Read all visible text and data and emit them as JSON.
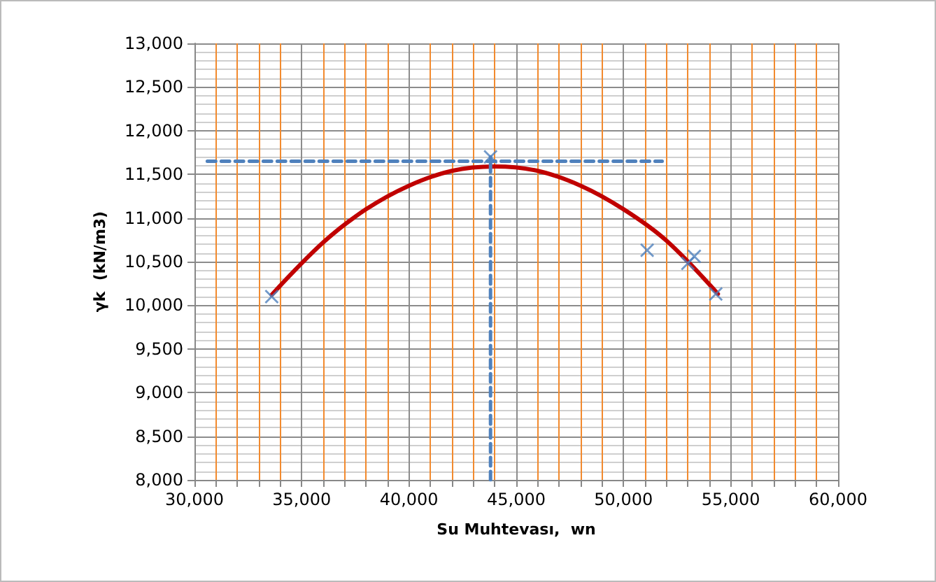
{
  "chart_data": {
    "type": "scatter",
    "xlabel": "Su Muhtevası,  wn",
    "ylabel": "γk  (kN/m3)",
    "xlim": [
      30000,
      60000
    ],
    "xticks": [
      {
        "value": 30000,
        "label": "30,000"
      },
      {
        "value": 31000,
        "label": null
      },
      {
        "value": 32000,
        "label": null
      },
      {
        "value": 33000,
        "label": null
      },
      {
        "value": 34000,
        "label": null
      },
      {
        "value": 35000,
        "label": "35,000"
      },
      {
        "value": 36000,
        "label": null
      },
      {
        "value": 37000,
        "label": null
      },
      {
        "value": 38000,
        "label": null
      },
      {
        "value": 39000,
        "label": null
      },
      {
        "value": 40000,
        "label": "40,000"
      },
      {
        "value": 41000,
        "label": null
      },
      {
        "value": 42000,
        "label": null
      },
      {
        "value": 43000,
        "label": null
      },
      {
        "value": 44000,
        "label": null
      },
      {
        "value": 45000,
        "label": "45,000"
      },
      {
        "value": 46000,
        "label": null
      },
      {
        "value": 47000,
        "label": null
      },
      {
        "value": 48000,
        "label": null
      },
      {
        "value": 49000,
        "label": null
      },
      {
        "value": 50000,
        "label": "50,000"
      },
      {
        "value": 51000,
        "label": null
      },
      {
        "value": 52000,
        "label": null
      },
      {
        "value": 53000,
        "label": null
      },
      {
        "value": 54000,
        "label": null
      },
      {
        "value": 55000,
        "label": "55,000"
      },
      {
        "value": 56000,
        "label": null
      },
      {
        "value": 57000,
        "label": null
      },
      {
        "value": 58000,
        "label": null
      },
      {
        "value": 59000,
        "label": null
      },
      {
        "value": 60000,
        "label": "60,000"
      }
    ],
    "ylim": [
      8000,
      13000
    ],
    "yticks": [
      {
        "value": 8000,
        "label": "8,000"
      },
      {
        "value": 8500,
        "label": "8,500"
      },
      {
        "value": 9000,
        "label": "9,000"
      },
      {
        "value": 9500,
        "label": "9,500"
      },
      {
        "value": 10000,
        "label": "10,000"
      },
      {
        "value": 10500,
        "label": "10,500"
      },
      {
        "value": 11000,
        "label": "11,000"
      },
      {
        "value": 11500,
        "label": "11,500"
      },
      {
        "value": 12000,
        "label": "12,000"
      },
      {
        "value": 12500,
        "label": "12,500"
      },
      {
        "value": 13000,
        "label": "13,000"
      }
    ],
    "grid": true,
    "series": [
      {
        "type": "line",
        "color": "#c00000",
        "marker": "none",
        "line_style": "solid",
        "x": [
          33600,
          36000,
          38000,
          40000,
          42000,
          44000,
          46000,
          48000,
          50000,
          52000,
          54400
        ],
        "values": [
          10120,
          10720,
          11100,
          11370,
          11540,
          11590,
          11540,
          11370,
          11100,
          10740,
          10130
        ]
      },
      {
        "type": "line",
        "color": "#4f81bd",
        "marker": "none",
        "line_style": "dashed",
        "x": [
          30600,
          51800
        ],
        "values": [
          11650,
          11650
        ]
      },
      {
        "type": "line",
        "color": "#4f81bd",
        "marker": "none",
        "line_style": "dashed",
        "x": [
          43800,
          43800
        ],
        "values": [
          8000,
          11700
        ]
      },
      {
        "color": "#4f81bd",
        "marker": "cross",
        "x": [
          33600,
          43800,
          51100,
          53000,
          53300,
          54300
        ],
        "values": [
          10100,
          11700,
          10630,
          10480,
          10560,
          10130
        ]
      }
    ]
  }
}
